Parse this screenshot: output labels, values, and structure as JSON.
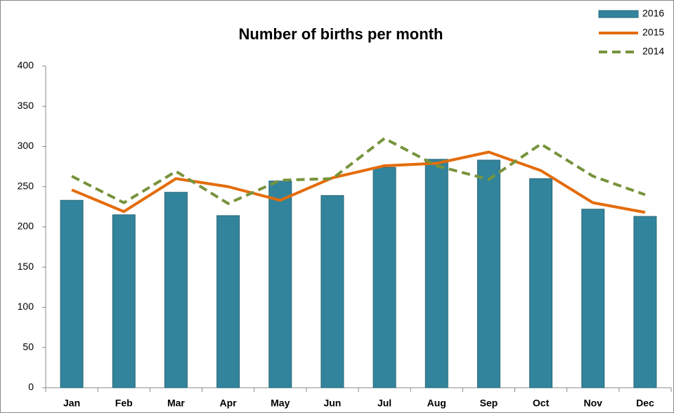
{
  "chart_data": {
    "type": "bar",
    "title": "Number of births per month",
    "categories": [
      "Jan",
      "Feb",
      "Mar",
      "Apr",
      "May",
      "Jun",
      "Jul",
      "Aug",
      "Sep",
      "Oct",
      "Nov",
      "Dec"
    ],
    "series": [
      {
        "name": "2016",
        "type": "bar",
        "color": "#31849b",
        "values": [
          233,
          215,
          243,
          214,
          257,
          239,
          274,
          284,
          283,
          260,
          222,
          213
        ]
      },
      {
        "name": "2015",
        "type": "line",
        "color": "#e46c0a",
        "values": [
          246,
          219,
          260,
          250,
          233,
          261,
          276,
          279,
          293,
          270,
          230,
          218
        ]
      },
      {
        "name": "2014",
        "type": "line",
        "dashed": true,
        "color": "#77933c",
        "values": [
          263,
          230,
          269,
          229,
          258,
          260,
          310,
          276,
          259,
          303,
          263,
          240
        ]
      }
    ],
    "ylim": [
      0,
      400
    ],
    "yticks": [
      0,
      50,
      100,
      150,
      200,
      250,
      300,
      350,
      400
    ],
    "grid": false,
    "legend": "top-right"
  }
}
